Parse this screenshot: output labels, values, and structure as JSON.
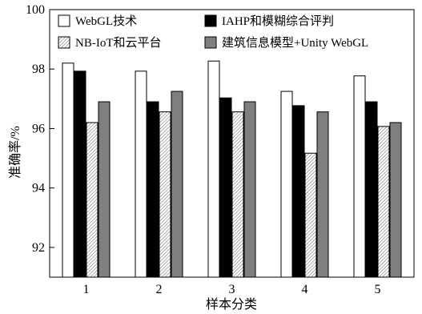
{
  "chart_data": {
    "type": "bar",
    "title": "",
    "xlabel": "样本分类",
    "ylabel": "准确率/%",
    "categories": [
      "1",
      "2",
      "3",
      "4",
      "5"
    ],
    "ylim": [
      91,
      100
    ],
    "yticks": [
      92,
      94,
      96,
      98,
      100
    ],
    "grid": false,
    "legend_position": "top",
    "series": [
      {
        "name": "WebGL技术",
        "color": "#ffffff",
        "pattern": "solid",
        "values": [
          98.2,
          97.93,
          98.27,
          97.25,
          97.77
        ]
      },
      {
        "name": "IAHP和模糊综合评判",
        "color": "#000000",
        "pattern": "solid",
        "values": [
          97.93,
          96.9,
          97.03,
          96.77,
          96.9
        ]
      },
      {
        "name": "NB-IoT和云平台",
        "color": "#d8d8d8",
        "pattern": "hatch",
        "values": [
          96.2,
          96.56,
          96.56,
          95.17,
          96.07
        ]
      },
      {
        "name": "建筑信息模型+Unity WebGL",
        "color": "#7f7f7f",
        "pattern": "solid",
        "values": [
          96.9,
          97.25,
          96.9,
          96.56,
          96.2
        ]
      }
    ]
  }
}
